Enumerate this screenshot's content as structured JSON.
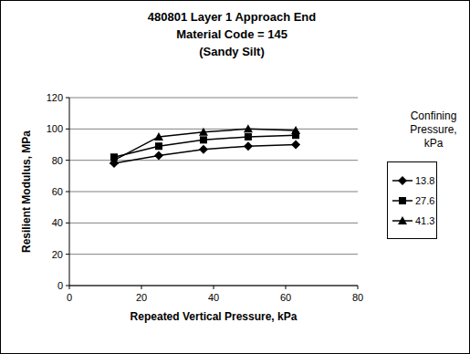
{
  "chart_data": {
    "type": "line",
    "title": [
      "480801 Layer 1 Approach End",
      "Material Code = 145",
      "(Sandy Silt)"
    ],
    "x_label": "Repeated Vertical Pressure, kPa",
    "y_label": "Resilient Modulus, MPa",
    "legend_title": "Confining Pressure, kPa",
    "x": [
      12.4,
      24.8,
      37.2,
      49.6,
      62.8
    ],
    "series": [
      {
        "name": "13.8",
        "color": "#000000",
        "marker": "diamond",
        "values": [
          78,
          83,
          87,
          89,
          90
        ]
      },
      {
        "name": "27.6",
        "color": "#000000",
        "marker": "square",
        "values": [
          82,
          89,
          93,
          95,
          96
        ]
      },
      {
        "name": "41.3",
        "color": "#000000",
        "marker": "triangle",
        "values": [
          80,
          95,
          98,
          100,
          99
        ]
      }
    ],
    "xlim": [
      0,
      80
    ],
    "xticks": [
      0,
      20,
      40,
      60,
      80
    ],
    "ylim": [
      0,
      120
    ],
    "yticks": [
      0,
      20,
      40,
      60,
      80,
      100,
      120
    ],
    "grid": true,
    "legend": "right"
  }
}
